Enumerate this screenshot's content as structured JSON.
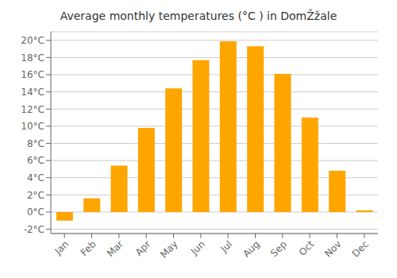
{
  "chart_data": {
    "type": "bar",
    "title": "Average monthly temperatures (°C ) in DomŽžale",
    "categories": [
      "Jan",
      "Feb",
      "Mar",
      "Apr",
      "May",
      "Jun",
      "Jul",
      "Aug",
      "Sep",
      "Oct",
      "Nov",
      "Dec"
    ],
    "values": [
      -1.0,
      1.6,
      5.4,
      9.8,
      14.4,
      17.7,
      19.9,
      19.3,
      16.1,
      11.0,
      4.8,
      0.2
    ],
    "color": "#FFA500",
    "ylim": [
      -2.5,
      21.0
    ],
    "yticks": [
      {
        "value": -2,
        "label": "-2°C"
      },
      {
        "value": 0,
        "label": "0°C"
      },
      {
        "value": 2,
        "label": "2°C"
      },
      {
        "value": 4,
        "label": "4°C"
      },
      {
        "value": 6,
        "label": "6°C"
      },
      {
        "value": 8,
        "label": "8°C"
      },
      {
        "value": 10,
        "label": "10°C"
      },
      {
        "value": 12,
        "label": "12°C"
      },
      {
        "value": 14,
        "label": "14°C"
      },
      {
        "value": 16,
        "label": "16°C"
      },
      {
        "value": 18,
        "label": "18°C"
      },
      {
        "value": 20,
        "label": "20°C"
      }
    ],
    "grid": true
  }
}
